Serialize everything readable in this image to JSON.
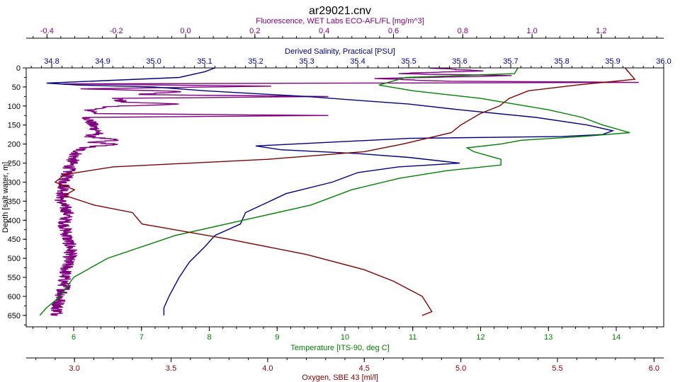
{
  "chart_data": {
    "type": "line",
    "title": "ar29021.cnv",
    "y_axis": {
      "label": "Depth [salt water, m]",
      "range": [
        0,
        680
      ],
      "inverted": true,
      "ticks": [
        0,
        50,
        100,
        150,
        200,
        250,
        300,
        350,
        400,
        450,
        500,
        550,
        600,
        650
      ]
    },
    "x_axes": [
      {
        "key": "fluorescence",
        "label": "Fluorescence, WET Labs ECO-AFL/FL [mg/m^3]",
        "position": "top",
        "color": "#800080",
        "range": [
          -0.46,
          1.38
        ],
        "ticks": [
          -0.4,
          -0.2,
          0.0,
          0.2,
          0.4,
          0.6,
          0.8,
          1.0,
          1.2
        ],
        "tick_labels": [
          "-0.4",
          "-0.2",
          "0.0",
          "0.2",
          "0.4",
          "0.6",
          "0.8",
          "1.0",
          "1.2"
        ]
      },
      {
        "key": "salinity",
        "label": "Derived Salinity, Practical [PSU]",
        "position": "top",
        "color": "#000080",
        "range": [
          34.75,
          36.0
        ],
        "ticks": [
          34.8,
          34.9,
          35.0,
          35.1,
          35.2,
          35.3,
          35.4,
          35.5,
          35.6,
          35.7,
          35.8,
          35.9,
          36.0
        ],
        "tick_labels": [
          "34.8",
          "34.9",
          "35.0",
          "35.1",
          "35.2",
          "35.3",
          "35.4",
          "35.5",
          "35.6",
          "35.7",
          "35.8",
          "35.9",
          "36.0"
        ]
      },
      {
        "key": "temperature",
        "label": "Temperature [ITS-90, deg C]",
        "position": "bottom",
        "color": "#008000",
        "range": [
          5.3,
          14.7
        ],
        "ticks": [
          6,
          7,
          8,
          9,
          10,
          11,
          12,
          13,
          14
        ],
        "tick_labels": [
          "6",
          "7",
          "8",
          "9",
          "10",
          "11",
          "12",
          "13",
          "14"
        ]
      },
      {
        "key": "oxygen",
        "label": "Oxygen, SBE 43 [ml/l]",
        "position": "bottom",
        "color": "#800000",
        "range": [
          2.75,
          6.05
        ],
        "ticks": [
          3.0,
          3.5,
          4.0,
          4.5,
          5.0,
          5.5,
          6.0
        ],
        "tick_labels": [
          "3.0",
          "3.5",
          "4.0",
          "4.5",
          "5.0",
          "5.5",
          "6.0"
        ]
      }
    ],
    "series": [
      {
        "axis": "fluorescence",
        "color": "#800080",
        "profile": [
          [
            0.7,
            0
          ],
          [
            0.85,
            8
          ],
          [
            0.6,
            15
          ],
          [
            0.95,
            20
          ],
          [
            0.55,
            28
          ],
          [
            0.75,
            35
          ],
          [
            1.3,
            38
          ],
          [
            -0.35,
            42
          ],
          [
            0.25,
            48
          ],
          [
            -0.3,
            55
          ],
          [
            0.0,
            62
          ],
          [
            -0.15,
            70
          ],
          [
            0.4,
            75
          ],
          [
            -0.2,
            80
          ],
          [
            -0.18,
            90
          ],
          [
            0.0,
            95
          ],
          [
            -0.2,
            100
          ],
          [
            -0.28,
            110
          ],
          [
            -0.25,
            120
          ],
          [
            0.4,
            125
          ],
          [
            -0.28,
            130
          ],
          [
            -0.27,
            150
          ],
          [
            -0.25,
            170
          ],
          [
            -0.28,
            180
          ],
          [
            -0.2,
            190
          ],
          [
            -0.28,
            195
          ],
          [
            -0.2,
            200
          ],
          [
            -0.3,
            210
          ],
          [
            -0.32,
            230
          ],
          [
            -0.33,
            250
          ],
          [
            -0.34,
            275
          ],
          [
            -0.35,
            300
          ],
          [
            -0.35,
            320
          ],
          [
            -0.36,
            350
          ],
          [
            -0.34,
            380
          ],
          [
            -0.35,
            410
          ],
          [
            -0.34,
            450
          ],
          [
            -0.33,
            480
          ],
          [
            -0.34,
            510
          ],
          [
            -0.35,
            550
          ],
          [
            -0.35,
            580
          ],
          [
            -0.36,
            600
          ],
          [
            -0.37,
            630
          ],
          [
            -0.37,
            650
          ]
        ],
        "jitter": 0.02
      },
      {
        "axis": "salinity",
        "color": "#000080",
        "profile": [
          [
            35.12,
            0
          ],
          [
            35.1,
            10
          ],
          [
            35.05,
            25
          ],
          [
            34.79,
            40
          ],
          [
            34.85,
            45
          ],
          [
            35.0,
            50
          ],
          [
            35.1,
            60
          ],
          [
            35.3,
            75
          ],
          [
            35.4,
            85
          ],
          [
            35.5,
            95
          ],
          [
            35.6,
            110
          ],
          [
            35.75,
            130
          ],
          [
            35.85,
            150
          ],
          [
            35.9,
            165
          ],
          [
            35.88,
            175
          ],
          [
            35.8,
            180
          ],
          [
            35.5,
            185
          ],
          [
            35.2,
            205
          ],
          [
            35.25,
            215
          ],
          [
            35.4,
            225
          ],
          [
            35.5,
            235
          ],
          [
            35.6,
            250
          ],
          [
            35.48,
            260
          ],
          [
            35.4,
            275
          ],
          [
            35.35,
            300
          ],
          [
            35.26,
            330
          ],
          [
            35.18,
            380
          ],
          [
            35.17,
            410
          ],
          [
            35.12,
            440
          ],
          [
            35.1,
            470
          ],
          [
            35.07,
            510
          ],
          [
            35.05,
            550
          ],
          [
            35.03,
            600
          ],
          [
            35.02,
            630
          ],
          [
            35.02,
            650
          ]
        ]
      },
      {
        "axis": "temperature",
        "color": "#008000",
        "profile": [
          [
            12.55,
            0
          ],
          [
            12.5,
            15
          ],
          [
            10.9,
            25
          ],
          [
            10.5,
            45
          ],
          [
            11.0,
            60
          ],
          [
            12.0,
            80
          ],
          [
            13.0,
            110
          ],
          [
            13.5,
            130
          ],
          [
            13.8,
            150
          ],
          [
            14.2,
            170
          ],
          [
            13.5,
            180
          ],
          [
            12.6,
            190
          ],
          [
            12.3,
            200
          ],
          [
            11.8,
            210
          ],
          [
            11.9,
            220
          ],
          [
            12.3,
            240
          ],
          [
            12.3,
            255
          ],
          [
            11.5,
            270
          ],
          [
            10.8,
            290
          ],
          [
            10.1,
            320
          ],
          [
            9.5,
            360
          ],
          [
            8.5,
            400
          ],
          [
            7.5,
            440
          ],
          [
            6.5,
            500
          ],
          [
            6.0,
            550
          ],
          [
            5.8,
            600
          ],
          [
            5.6,
            630
          ],
          [
            5.5,
            650
          ]
        ]
      },
      {
        "axis": "oxygen",
        "color": "#800000",
        "profile": [
          [
            5.85,
            0
          ],
          [
            5.9,
            30
          ],
          [
            5.6,
            45
          ],
          [
            5.35,
            60
          ],
          [
            5.25,
            80
          ],
          [
            5.2,
            100
          ],
          [
            5.1,
            120
          ],
          [
            5.0,
            150
          ],
          [
            4.95,
            170
          ],
          [
            4.7,
            200
          ],
          [
            4.5,
            220
          ],
          [
            4.0,
            240
          ],
          [
            3.2,
            260
          ],
          [
            2.95,
            280
          ],
          [
            2.9,
            300
          ],
          [
            3.0,
            320
          ],
          [
            2.95,
            335
          ],
          [
            3.1,
            360
          ],
          [
            3.3,
            380
          ],
          [
            3.35,
            410
          ],
          [
            3.8,
            450
          ],
          [
            4.2,
            490
          ],
          [
            4.5,
            530
          ],
          [
            4.65,
            560
          ],
          [
            4.8,
            600
          ],
          [
            4.85,
            640
          ],
          [
            4.8,
            650
          ]
        ]
      }
    ],
    "grid": false,
    "legend": "none"
  }
}
